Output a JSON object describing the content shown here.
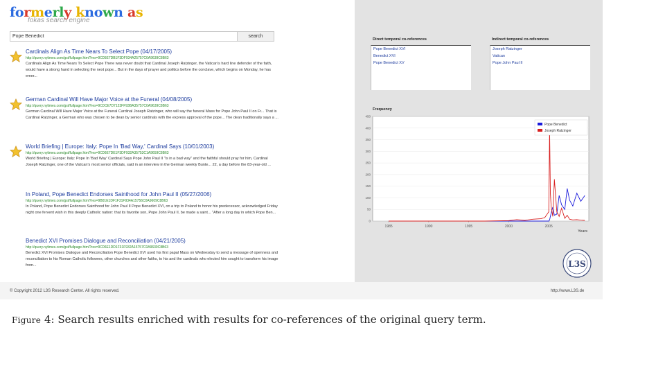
{
  "app": {
    "logo_text": "formerly known as",
    "logo_colors": [
      "#2b6be0",
      "#2b6be0",
      "#d93a2a",
      "#e8b400",
      "#2b6be0",
      "#2ea84a",
      "#2ea84a",
      "#d93a2a",
      "#e8b400",
      "#2b6be0",
      "#2b6be0",
      "#2ea84a",
      "#2b6be0",
      "#d93a2a",
      "#e8b400",
      "#2b6be0",
      "#2ea84a"
    ],
    "tagline": "fokas search engine"
  },
  "search": {
    "value": "Pope Benedict",
    "button_label": "search"
  },
  "results": [
    {
      "title": "Cardinals Align As Time Nears To Select Pope (04/17/2005)",
      "url": "http://query.nytimes.com/gst/fullpage.html?res=9C05E7DB1F3DF934A25757C0A9639C8B63",
      "snippet": "Cardinals Align As Time Nears To Select Pope There was never doubt that Cardinal Joseph Ratzinger, the Vatican's hard line defender of the faith, would have a strong hand in selecting the next pope... But in the days of prayer and politics before the conclave, which begins on Monday, he has emer..."
    },
    {
      "title": "German Cardinal Will Have Major Voice at the Funeral (04/08/2005)",
      "url": "http://query.nytimes.com/gst/fullpage.html?res=9C0CE7D7123FF93BA35757C0A9639C8B63",
      "snippet": "German Cardinal Will Have Major Voice at the Funeral Cardinal Joseph Ratzinger, who will say the funeral Mass for Pope John Paul II on Fr... That is Cardinal Ratzinger, a German who was chosen to be dean by senior cardinals with the express approval of the pope... The dean traditionally says a ..."
    },
    {
      "title": "World Briefing | Europe: Italy: Pope In 'Bad Way,' Cardinal Says (10/01/2003)",
      "url": "http://query.nytimes.com/gst/fullpage.html?res=9C06E7DE1F3DF932A35753C1A9659C8B63",
      "snippet": "World Briefing | Europe: Italy: Pope In 'Bad Way' Cardinal Says Pope John Paul II \"is in a bad way\" and the faithful should pray for him, Cardinal Joseph Ratzinger, one of the Vatican's most senior officials, said in an interview in the German weekly Bunte... 22, a day before the 83-year-old ..."
    },
    {
      "title": "In Poland, Pope Benedict Endorses Sainthood for John Paul II (05/27/2006)",
      "url": "http://query.nytimes.com/gst/fullpage.html?res=9B01E1DF1F31F934A15756C0A9609C8B63",
      "snippet": "In Poland, Pope Benedict Endorses Sainthood for John Paul II Pope Benedict XVI, on a trip to Poland to honor his predecessor, acknowledged Friday night one fervent wish in this deeply Catholic nation: that its favorite son, Pope John Paul II, be made a saint... \"After a long day in which Pope Ben..."
    },
    {
      "title": "Benedict XVI Promises Dialogue and Reconciliation (04/21/2005)",
      "url": "http://query.nytimes.com/gst/fullpage.html?res=9C06E1DD1F31F932A15757C0A9639C8B63",
      "snippet": "Benedict XVI Promises Dialogue and Reconciliation Pope Benedict XVI used his first papal Mass on Wednesday to send a message of openness and reconciliation to his Roman Catholic followers, other churches and other faiths, to his and the cardinals who elected him sought to transform his image from..."
    }
  ],
  "coreferences": {
    "direct_header": "Direct temporal co-references",
    "direct_items": [
      "Pope Benedict XVI",
      "Benedict XVI",
      "Pope Benedict XV"
    ],
    "indirect_header": "Indirect temporal co-references",
    "indirect_items": [
      "Joseph Ratzinger",
      "Vatican",
      "Pope John Paul II"
    ]
  },
  "frequency_label": "Frequency",
  "chart_data": {
    "type": "line",
    "x": [
      1985,
      1987,
      1990,
      1992,
      1995,
      1997,
      2000,
      2001,
      2002,
      2003,
      2004,
      2004.5,
      2005,
      2005.1,
      2005.2,
      2005.3,
      2005.5,
      2005.7,
      2006,
      2006.3,
      2006.6,
      2007,
      2007.3,
      2007.6,
      2008,
      2008.5,
      2009,
      2009.5
    ],
    "series": [
      {
        "name": "Pope Benedict",
        "color": "#1a1adb",
        "values": [
          0,
          0,
          0,
          0,
          0,
          0,
          0,
          0,
          0,
          0,
          0,
          0,
          0,
          5,
          20,
          35,
          60,
          25,
          30,
          110,
          70,
          50,
          140,
          90,
          65,
          120,
          85,
          110
        ]
      },
      {
        "name": "Joseph Ratzinger",
        "color": "#d81e1e",
        "values": [
          0,
          0,
          0,
          0,
          0,
          0,
          2,
          6,
          3,
          8,
          10,
          15,
          40,
          400,
          120,
          60,
          20,
          180,
          40,
          20,
          55,
          12,
          25,
          8,
          5,
          6,
          4,
          3
        ]
      }
    ],
    "xticks": [
      "1985",
      "1990",
      "1995",
      "2000",
      "2005"
    ],
    "xlabel": "Years",
    "yticks": [
      "0",
      "50",
      "100",
      "150",
      "200",
      "250",
      "300",
      "350",
      "400",
      "450"
    ],
    "ylim": [
      0,
      450
    ],
    "xlim": [
      1983,
      2010
    ],
    "legend": "top-right"
  },
  "seal": {
    "text": "L3S",
    "caption": "L3S Research Center"
  },
  "footer": {
    "copyright": "© Copyright 2012 L3S Research Center. All rights reserved.",
    "url": "http://www.L3S.de"
  },
  "caption": {
    "label": "Figure",
    "number": "4:",
    "text": "Search results enriched with results for co-references of the original query term."
  }
}
